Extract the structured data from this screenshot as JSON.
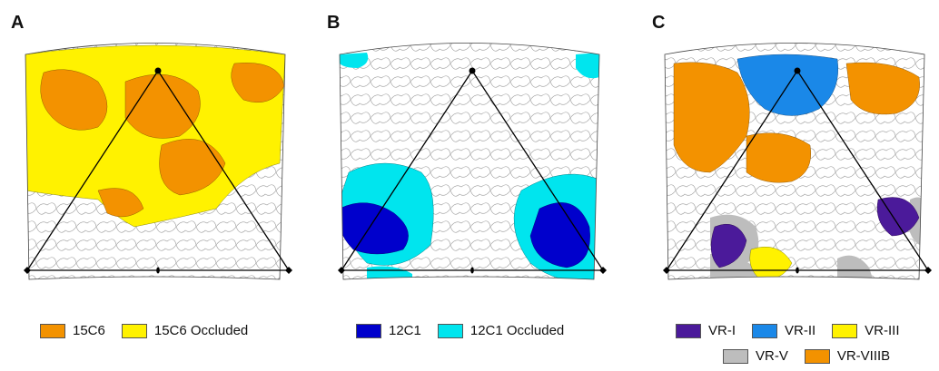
{
  "panels": [
    {
      "letter": "A"
    },
    {
      "letter": "B"
    },
    {
      "letter": "C"
    }
  ],
  "legend_a": [
    {
      "label": "15C6",
      "color": "#F39200"
    },
    {
      "label": "15C6 Occluded",
      "color": "#FFF200"
    }
  ],
  "legend_b": [
    {
      "label": "12C1",
      "color": "#0000CC"
    },
    {
      "label": "12C1 Occluded",
      "color": "#00E5EE"
    }
  ],
  "legend_c": [
    {
      "label": "VR-I",
      "color": "#4B1A9A"
    },
    {
      "label": "VR-II",
      "color": "#1A88E8"
    },
    {
      "label": "VR-III",
      "color": "#FFF200"
    },
    {
      "label": "VR-V",
      "color": "#BDBDBD"
    },
    {
      "label": "VR-VIIIB",
      "color": "#F39200"
    }
  ],
  "colors": {
    "cell_outline": "#9a9a9a",
    "triangle": "#000000",
    "background": "#ffffff"
  }
}
